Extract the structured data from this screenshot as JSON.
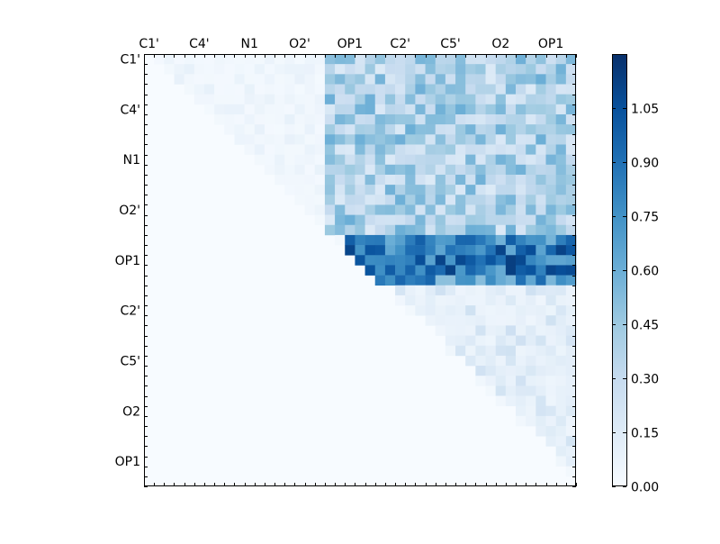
{
  "chart_data": {
    "type": "heatmap",
    "title": "",
    "xlabel": "",
    "ylabel": "",
    "x_tick_labels": [
      "C1'",
      "C4'",
      "N1",
      "O2'",
      "OP1",
      "C2'",
      "C5'",
      "O2",
      "OP1"
    ],
    "y_tick_labels": [
      "C1'",
      "C4'",
      "N1",
      "O2'",
      "OP1",
      "C2'",
      "C5'",
      "O2",
      "OP1"
    ],
    "n_rows": 43,
    "n_cols": 43,
    "colormap": "Blues",
    "colors": {
      "low": "#f7fbff",
      "mid": "#6baed6",
      "high": "#08306b"
    },
    "colorbar": {
      "min": 0.0,
      "max": 1.2,
      "ticks": [
        "0.00",
        "0.15",
        "0.30",
        "0.45",
        "0.60",
        "0.75",
        "0.90",
        "1.05"
      ]
    },
    "matrix_note": "upper triangle of pairwise atom distance deviations; lower triangle zero",
    "values_by_region": {
      "upper_left_block_rows_0_12": 0.1,
      "upper_mid_block_rows_0_12_cols_18_42": 0.4,
      "op1_band_rows_18_22": 1.0,
      "lower_right_triangle_rows_23_42": 0.25,
      "lower_triangle": 0.0
    }
  }
}
